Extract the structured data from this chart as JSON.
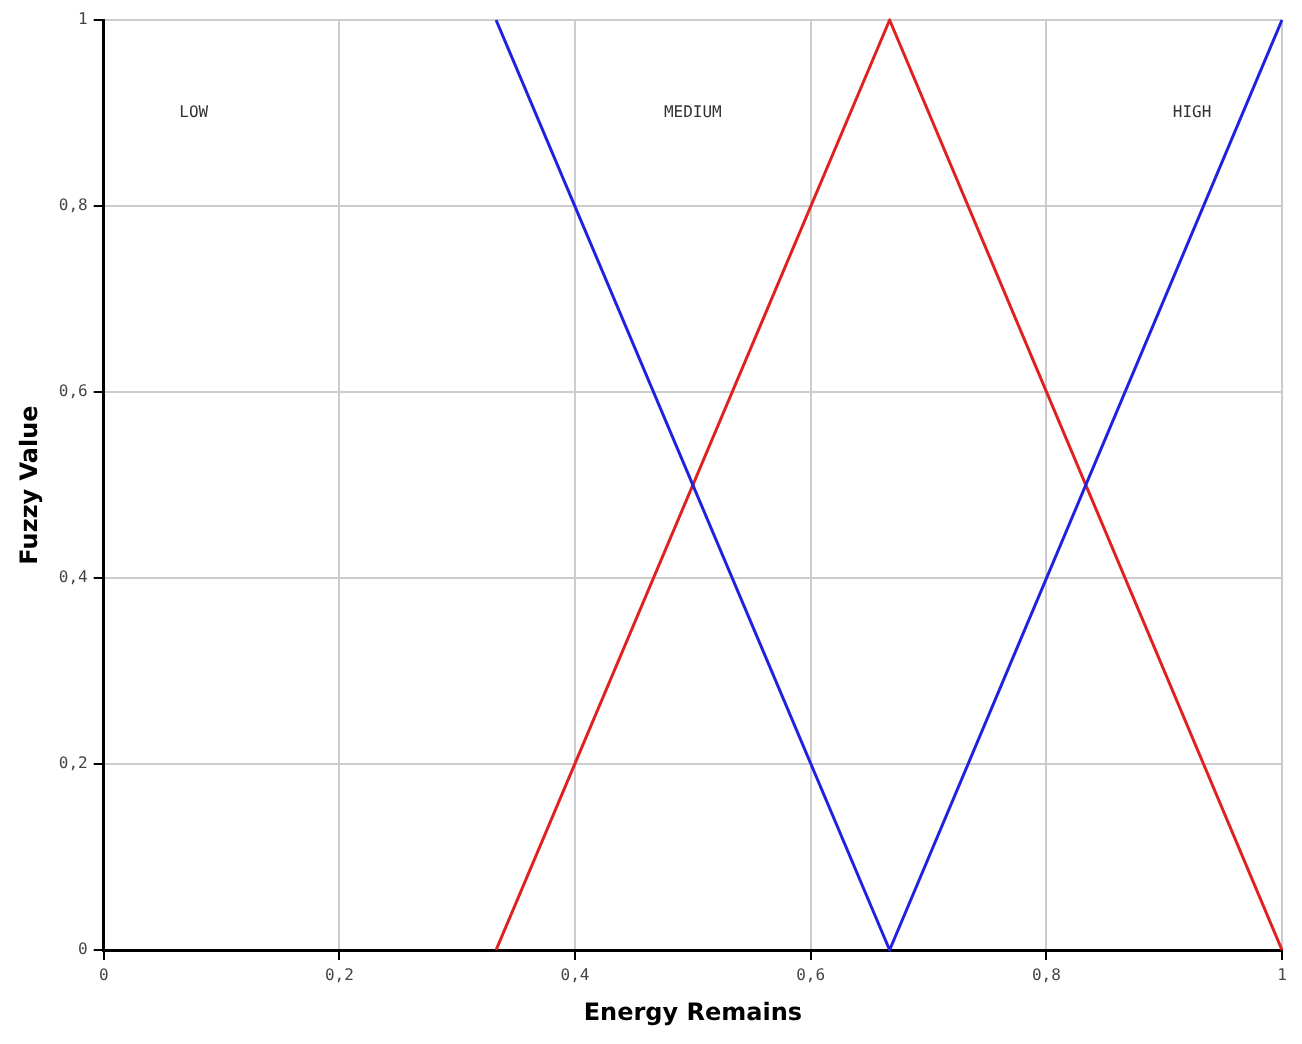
{
  "chart_data": {
    "type": "line",
    "xlabel": "Energy Remains",
    "ylabel": "Fuzzy Value",
    "xlim": [
      0,
      1
    ],
    "ylim": [
      0,
      1
    ],
    "xticks": [
      0,
      {
        "value": 0.2,
        "label": "0,2"
      },
      {
        "value": 0.4,
        "label": "0,4"
      },
      {
        "value": 0.6,
        "label": "0,6"
      },
      {
        "value": 0.8,
        "label": "0,8"
      },
      1
    ],
    "yticks": [
      0,
      {
        "value": 0.2,
        "label": "0,2"
      },
      {
        "value": 0.4,
        "label": "0,4"
      },
      {
        "value": 0.6,
        "label": "0,6"
      },
      {
        "value": 0.8,
        "label": "0,8"
      },
      1
    ],
    "series": [
      {
        "color": "#2020e0",
        "x": [
          0.333,
          0.667,
          1
        ],
        "values": [
          1,
          0,
          1
        ]
      },
      {
        "color": "#e02020",
        "x": [
          0.333,
          0.667,
          1
        ],
        "values": [
          0,
          1,
          0
        ]
      }
    ],
    "annotations": [
      "LOW",
      "MEDIUM",
      "HIGH"
    ],
    "grid": true,
    "legend": false,
    "line_style": "solid"
  }
}
